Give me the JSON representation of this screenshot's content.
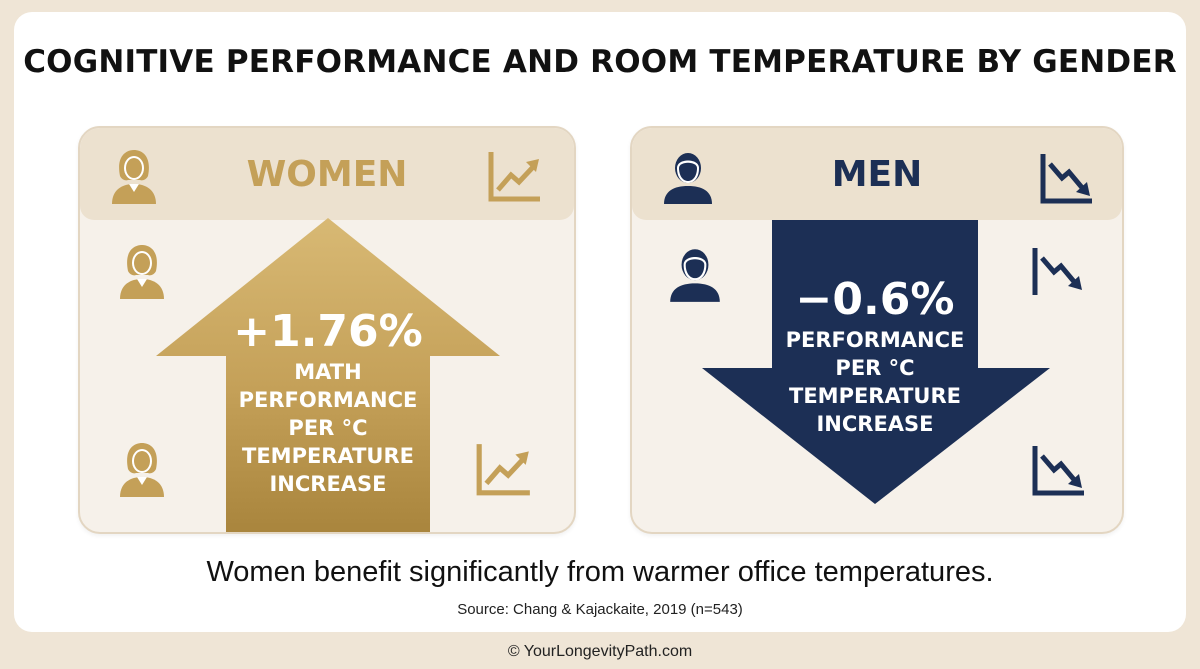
{
  "title": "COGNITIVE PERFORMANCE AND ROOM TEMPERATURE BY GENDER",
  "women": {
    "label": "WOMEN",
    "value": "+1.76%",
    "description_lines": [
      "MATH",
      "PERFORMANCE",
      "PER °C",
      "TEMPERATURE",
      "INCREASE"
    ],
    "color": "#c4a058",
    "trend": "up"
  },
  "men": {
    "label": "MEN",
    "value": "−0.6%",
    "description_lines": [
      "PERFORMANCE",
      "PER °C",
      "TEMPERATURE",
      "INCREASE"
    ],
    "color": "#1c2f55",
    "trend": "down"
  },
  "icons": {
    "women": [
      "woman-icon",
      "trend-up-icon"
    ],
    "men": [
      "man-icon",
      "trend-down-icon"
    ]
  },
  "caption": "Women benefit significantly from warmer office temperatures.",
  "source": "Source: Chang & Kajackaite, 2019 (n=543)",
  "footer": "© YourLongevityPath.com"
}
